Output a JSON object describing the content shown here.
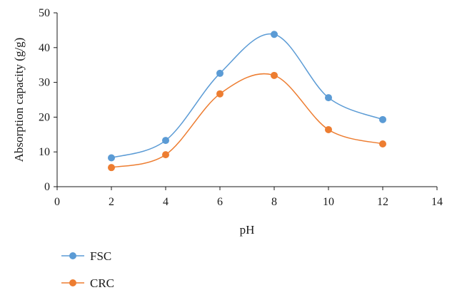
{
  "chart_data": {
    "type": "line",
    "title": "",
    "xlabel": "pH",
    "ylabel": "Absorption capacity (g/g)",
    "xlim": [
      0,
      14
    ],
    "ylim": [
      0,
      50
    ],
    "x_ticks": [
      0,
      2,
      4,
      6,
      8,
      10,
      12,
      14
    ],
    "y_ticks": [
      0,
      10,
      20,
      30,
      40,
      50
    ],
    "grid": false,
    "smooth": true,
    "legend_position": "bottom-left",
    "series": [
      {
        "name": "FSC",
        "color": "#5B9BD5",
        "x": [
          2,
          4,
          6,
          8,
          10,
          12
        ],
        "y": [
          8.3,
          13.3,
          32.6,
          43.8,
          25.6,
          19.3
        ]
      },
      {
        "name": "CRC",
        "color": "#ED7D31",
        "x": [
          2,
          4,
          6,
          8,
          10,
          12
        ],
        "y": [
          5.5,
          9.2,
          26.7,
          32.0,
          16.4,
          12.3
        ]
      }
    ]
  }
}
